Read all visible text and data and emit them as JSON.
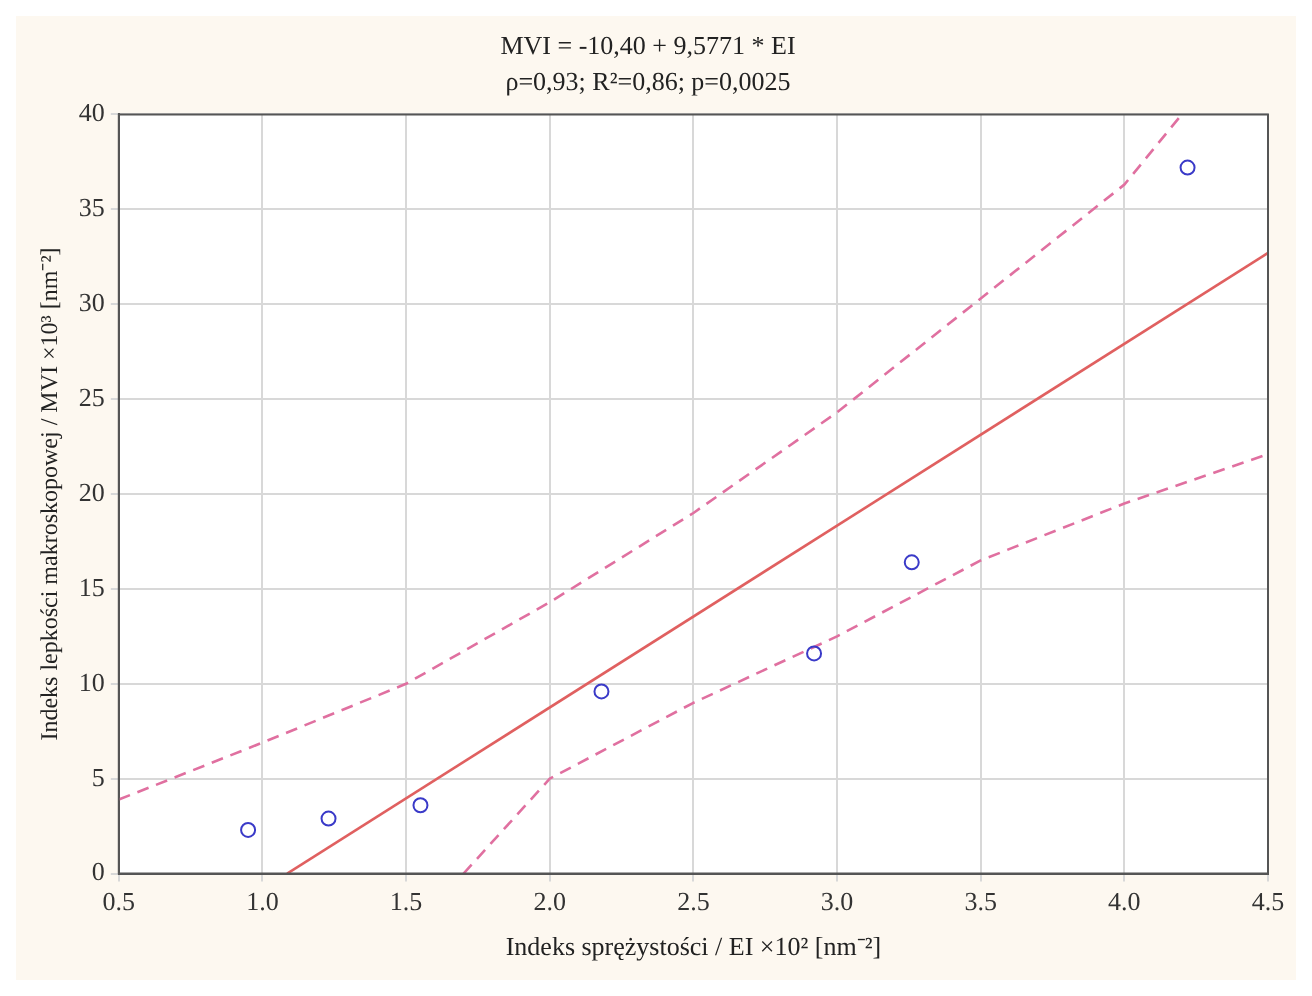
{
  "chart_data": {
    "type": "scatter",
    "title": "MVI = -10,40 + 9,5771 * EI",
    "subtitle": "ρ=0,93; R²=0,86; p=0,0025",
    "xlabel": "Indeks sprężystości / EI ×10² [nm⁻²]",
    "ylabel": "Indeks lepkości makroskopowej / MVI ×10³ [nm⁻²]",
    "xlim": [
      0.5,
      4.5
    ],
    "xticks": [
      {
        "value": 0.5,
        "label": "0.5"
      },
      {
        "value": 1,
        "label": "1.0"
      },
      {
        "value": 1.5,
        "label": "1.5"
      },
      {
        "value": 2,
        "label": "2.0"
      },
      {
        "value": 2.5,
        "label": "2.5"
      },
      {
        "value": 3,
        "label": "3.0"
      },
      {
        "value": 3.5,
        "label": "3.5"
      },
      {
        "value": 4,
        "label": "4.0"
      },
      {
        "value": 4.5,
        "label": "4.5"
      }
    ],
    "ylim": [
      0,
      40
    ],
    "yticks": [
      0,
      5,
      10,
      15,
      20,
      25,
      30,
      35,
      40
    ],
    "grid": true,
    "legend": false,
    "series": [
      {
        "color": "#3a3ac8",
        "marker": "circle",
        "x": [
          0.95,
          1.23,
          1.55,
          2.18,
          2.92,
          3.26,
          4.22
        ],
        "values": [
          2.3,
          2.9,
          3.6,
          9.6,
          11.6,
          16.4,
          37.2
        ]
      },
      {
        "type": "line",
        "color": "#e06060",
        "line_style": "solid",
        "marker": "none",
        "x": [
          1.086,
          4.5
        ],
        "values": [
          0,
          32.7
        ]
      },
      {
        "type": "line",
        "color": "#e070a0",
        "line_style": "dashed",
        "marker": "none",
        "x": [
          0.5,
          1.0,
          1.5,
          2.0,
          2.5,
          3.0,
          3.5,
          4.0,
          4.2
        ],
        "values": [
          3.9,
          6.9,
          10,
          14.3,
          19,
          24.3,
          30.3,
          36.3,
          40
        ]
      },
      {
        "type": "line",
        "color": "#e070a0",
        "line_style": "dashed",
        "marker": "none",
        "x": [
          1.7,
          2.0,
          2.5,
          3.0,
          3.5,
          4.0,
          4.5
        ],
        "values": [
          0,
          5,
          9,
          12.5,
          16.5,
          19.5,
          22.1
        ]
      }
    ]
  }
}
